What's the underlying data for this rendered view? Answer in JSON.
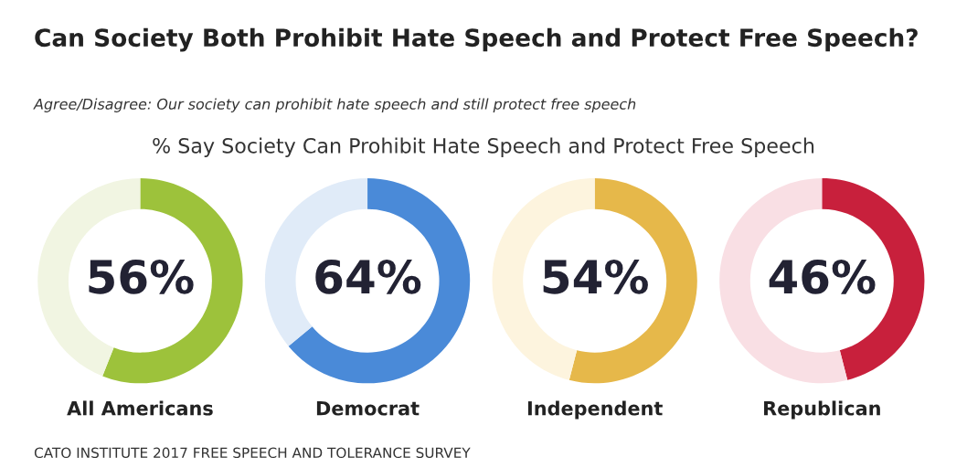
{
  "chart_data": [
    {
      "type": "other",
      "title": "Can Society Both Prohibit Hate Speech and Protect Free Speech?",
      "subtitle": "Agree/Disagree: Our society can prohibit hate speech and still protect free speech",
      "annotations": [
        "% Say Society Can Prohibit Hate Speech and Protect Free Speech",
        "CATO INSTITUTE 2017 FREE SPEECH AND TOLERANCE SURVEY"
      ]
    },
    {
      "type": "donut",
      "title": "All Americans",
      "categories": [
        null,
        null
      ],
      "values": [
        56,
        44
      ],
      "colors": [
        "#9dc23b",
        "#f1f5e2"
      ],
      "annotations": [
        "56%"
      ]
    },
    {
      "type": "donut",
      "title": "Democrat",
      "categories": [
        null,
        null
      ],
      "values": [
        64,
        36
      ],
      "colors": [
        "#4a8ad8",
        "#e0ebf8"
      ],
      "annotations": [
        "64%"
      ]
    },
    {
      "type": "donut",
      "title": "Independent",
      "categories": [
        null,
        null
      ],
      "values": [
        54,
        46
      ],
      "colors": [
        "#e6b84a",
        "#fdf4de"
      ],
      "annotations": [
        "54%"
      ]
    },
    {
      "type": "donut",
      "title": "Republican",
      "categories": [
        null,
        null
      ],
      "values": [
        46,
        54
      ],
      "colors": [
        "#c8203c",
        "#f9dfe4"
      ],
      "annotations": [
        "46%"
      ]
    }
  ]
}
